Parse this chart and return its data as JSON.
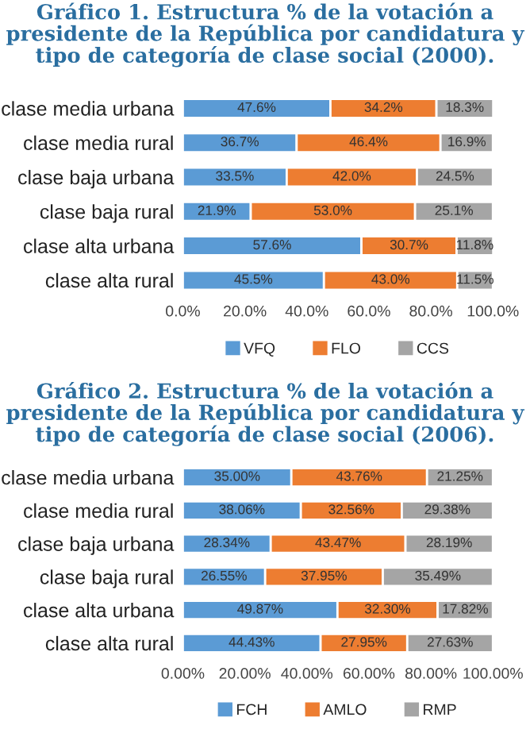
{
  "chart_data": [
    {
      "type": "bar",
      "orientation": "horizontal",
      "stacked": true,
      "legend": "bottom",
      "title": "Gráfico 1. Estructura % de la votación a presidente de la República por candidatura y tipo de categoría de clase social (2000).",
      "categories": [
        "clase media urbana",
        "clase media rural",
        "clase baja urbana",
        "clase baja rural",
        "clase alta urbana",
        "clase alta rural"
      ],
      "xlim": [
        0,
        100
      ],
      "xticks": [
        {
          "value": 0,
          "label": "0.0%"
        },
        {
          "value": 20,
          "label": "20.0%"
        },
        {
          "value": 40,
          "label": "40.0%"
        },
        {
          "value": 60,
          "label": "60.0%"
        },
        {
          "value": 80,
          "label": "80.0%"
        },
        {
          "value": 100,
          "label": "100.0%"
        }
      ],
      "series": [
        {
          "name": "VFQ",
          "color": "#5b9bd5",
          "values": [
            47.6,
            36.7,
            33.5,
            21.9,
            57.6,
            45.5
          ],
          "value_labels": [
            "47.6%",
            "36.7%",
            "33.5%",
            "21.9%",
            "57.6%",
            "45.5%"
          ]
        },
        {
          "name": "FLO",
          "color": "#ed7d31",
          "values": [
            34.2,
            46.4,
            42.0,
            53.0,
            30.7,
            43.0
          ],
          "value_labels": [
            "34.2%",
            "46.4%",
            "42.0%",
            "53.0%",
            "30.7%",
            "43.0%"
          ]
        },
        {
          "name": "CCS",
          "color": "#a5a5a5",
          "values": [
            18.3,
            16.9,
            24.5,
            25.1,
            11.8,
            11.5
          ],
          "value_labels": [
            "18.3%",
            "16.9%",
            "24.5%",
            "25.1%",
            "11.8%",
            "11.5%"
          ]
        }
      ]
    },
    {
      "type": "bar",
      "orientation": "horizontal",
      "stacked": true,
      "legend": "bottom",
      "title": "Gráfico 2. Estructura % de la votación a presidente de la República por candidatura y tipo de categoría de clase social (2006).",
      "categories": [
        "clase media urbana",
        "clase media rural",
        "clase baja urbana",
        "clase baja rural",
        "clase alta urbana",
        "clase alta rural"
      ],
      "xlim": [
        0,
        100
      ],
      "xticks": [
        {
          "value": 0,
          "label": "0.00%"
        },
        {
          "value": 20,
          "label": "20.00%"
        },
        {
          "value": 40,
          "label": "40.00%"
        },
        {
          "value": 60,
          "label": "60.00%"
        },
        {
          "value": 80,
          "label": "80.00%"
        },
        {
          "value": 100,
          "label": "100.00%"
        }
      ],
      "series": [
        {
          "name": "FCH",
          "color": "#5b9bd5",
          "values": [
            35.0,
            38.06,
            28.34,
            26.55,
            49.87,
            44.43
          ],
          "value_labels": [
            "35.00%",
            "38.06%",
            "28.34%",
            "26.55%",
            "49.87%",
            "44.43%"
          ]
        },
        {
          "name": "AMLO",
          "color": "#ed7d31",
          "values": [
            43.76,
            32.56,
            43.47,
            37.95,
            32.3,
            27.95
          ],
          "value_labels": [
            "43.76%",
            "32.56%",
            "43.47%",
            "37.95%",
            "32.30%",
            "27.95%"
          ]
        },
        {
          "name": "RMP",
          "color": "#a5a5a5",
          "values": [
            21.25,
            29.38,
            28.19,
            35.49,
            17.82,
            27.63
          ],
          "value_labels": [
            "21.25%",
            "29.38%",
            "28.19%",
            "35.49%",
            "17.82%",
            "27.63%"
          ]
        }
      ]
    }
  ]
}
